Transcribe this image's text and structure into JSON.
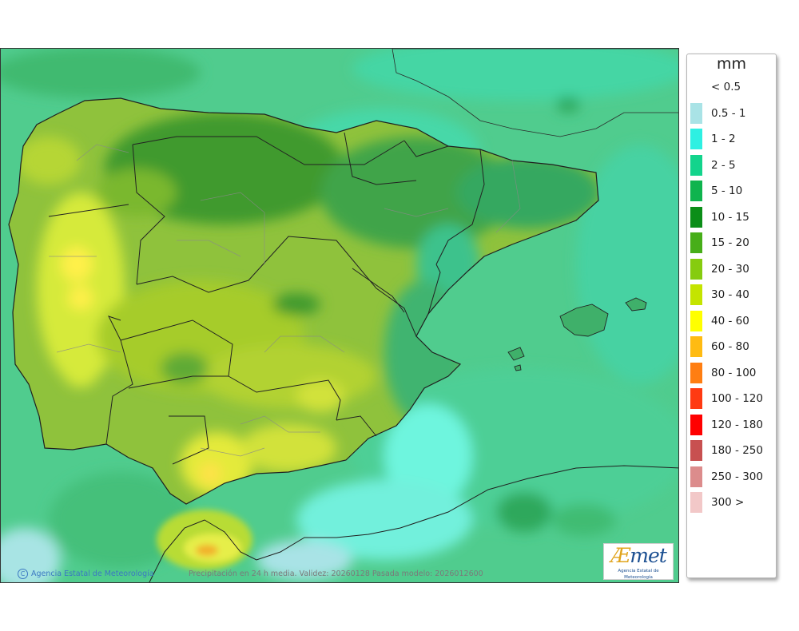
{
  "map": {
    "description_label": "precipitation-forecast-map",
    "footer_credit": "Agencia Estatal de Meteorología",
    "footer_product": "Precipitación en 24 h media. Validez: 20260128 Pasada modelo: 2026012600",
    "logo_text": "AEmet",
    "logo_subtext": "Agencia Estatal de Meteorología",
    "colors": {
      "sea": "#4fc98a",
      "land_base": "#9dcc48",
      "borders": "#1f1f1f"
    }
  },
  "legend": {
    "unit": "mm",
    "items": [
      {
        "label": "< 0.5",
        "color": "#ffffff"
      },
      {
        "label": "0.5 - 1",
        "color": "#a9e3e6"
      },
      {
        "label": "1 - 2",
        "color": "#2ef0e2"
      },
      {
        "label": "2 - 5",
        "color": "#13d48c"
      },
      {
        "label": "5 - 10",
        "color": "#0fb44e"
      },
      {
        "label": "10 - 15",
        "color": "#0b8e18"
      },
      {
        "label": "15 - 20",
        "color": "#47ae19"
      },
      {
        "label": "20 - 30",
        "color": "#86cc0f"
      },
      {
        "label": "30 - 40",
        "color": "#c4e400"
      },
      {
        "label": "40 - 60",
        "color": "#ffff00"
      },
      {
        "label": "60 - 80",
        "color": "#ffbb12"
      },
      {
        "label": "80 - 100",
        "color": "#ff7e12"
      },
      {
        "label": "100 - 120",
        "color": "#ff3a12"
      },
      {
        "label": "120 - 180",
        "color": "#ff0000"
      },
      {
        "label": "180 - 250",
        "color": "#c85050"
      },
      {
        "label": "250 - 300",
        "color": "#dc8c8c"
      },
      {
        "label": "300 >",
        "color": "#f2c8c8"
      }
    ]
  }
}
